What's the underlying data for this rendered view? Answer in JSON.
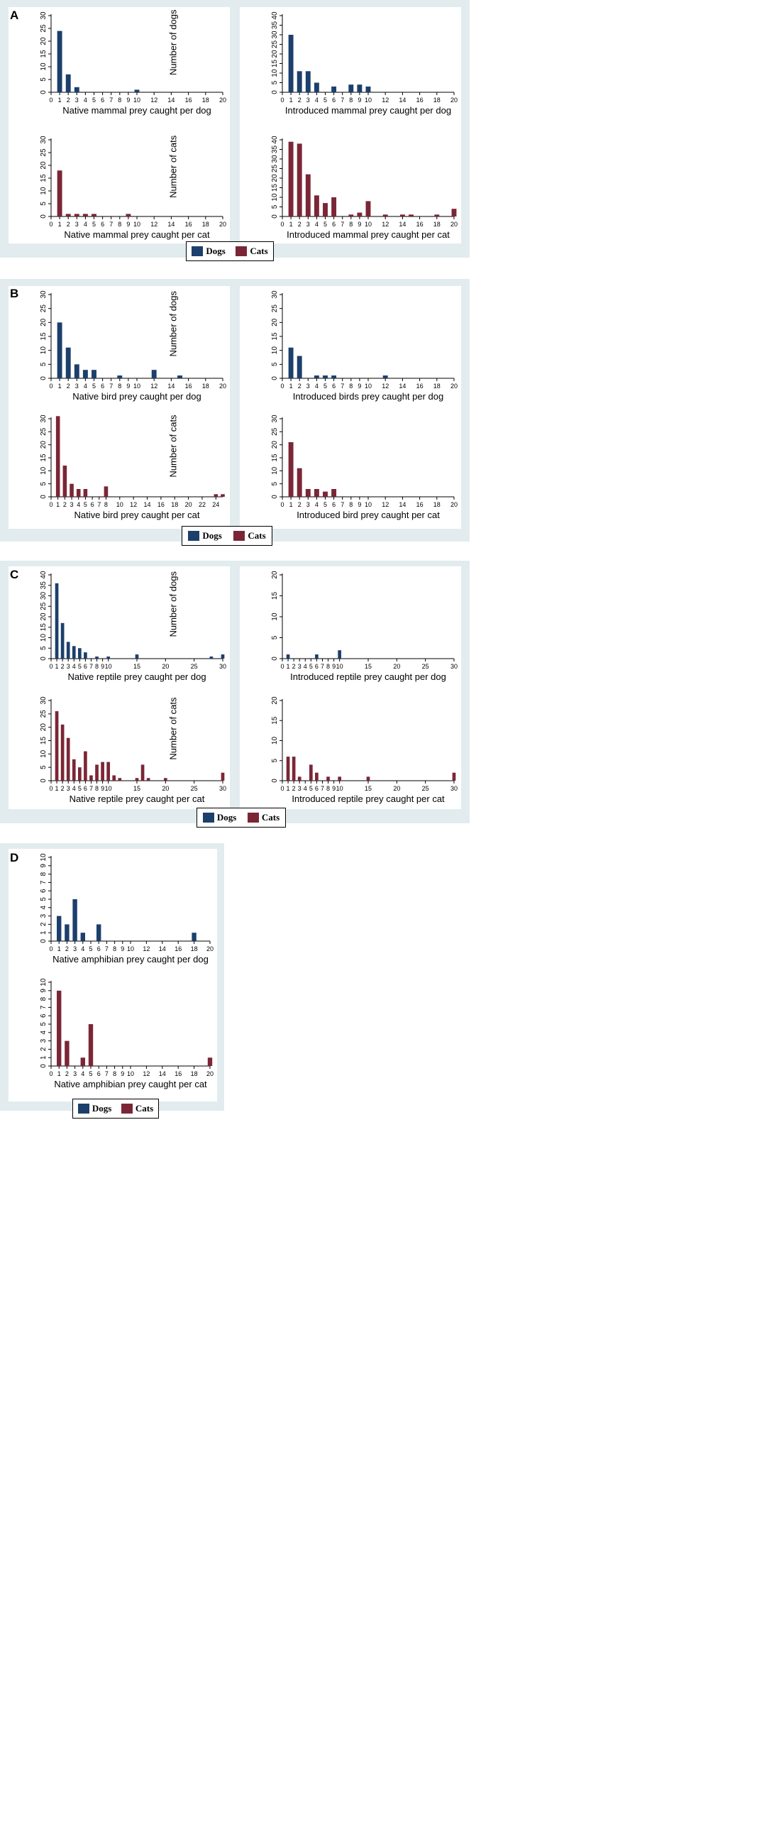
{
  "colors": {
    "dogs": "#1c3f6c",
    "cats": "#7b2636",
    "panel_bg": "#e2ecef"
  },
  "legend": {
    "dogs_label": "Dogs",
    "cats_label": "Cats"
  },
  "panels": [
    {
      "letter": "A"
    },
    {
      "letter": "B"
    },
    {
      "letter": "C"
    },
    {
      "letter": "D"
    }
  ],
  "chart_data": [
    {
      "id": "a1",
      "type": "bar",
      "panel": "A",
      "series": "dogs",
      "xlabel": "Native mammal prey caught per dog",
      "ylabel": "Number of dogs",
      "ylim": [
        0,
        30
      ],
      "yticks": [
        0,
        5,
        10,
        15,
        20,
        25,
        30
      ],
      "xlim": [
        0,
        20
      ],
      "xticks": [
        0,
        1,
        2,
        3,
        4,
        5,
        6,
        7,
        8,
        9,
        10,
        12,
        14,
        16,
        18,
        20
      ],
      "x": [
        1,
        2,
        3,
        10
      ],
      "values": [
        24,
        7,
        2,
        1
      ]
    },
    {
      "id": "a2",
      "type": "bar",
      "panel": "A",
      "series": "dogs",
      "xlabel": "Introduced mammal prey caught per dog",
      "ylabel": "",
      "ylim": [
        0,
        40
      ],
      "yticks": [
        0,
        5,
        10,
        15,
        20,
        25,
        30,
        35,
        40
      ],
      "xlim": [
        0,
        20
      ],
      "xticks": [
        0,
        1,
        2,
        3,
        4,
        5,
        6,
        7,
        8,
        9,
        10,
        12,
        14,
        16,
        18,
        20
      ],
      "x": [
        1,
        2,
        3,
        4,
        6,
        8,
        9,
        10
      ],
      "values": [
        30,
        11,
        11,
        5,
        3,
        4,
        4,
        3
      ]
    },
    {
      "id": "a3",
      "type": "bar",
      "panel": "A",
      "series": "cats",
      "xlabel": "Native mammal prey caught per cat",
      "ylabel": "Number of cats",
      "ylim": [
        0,
        30
      ],
      "yticks": [
        0,
        5,
        10,
        15,
        20,
        25,
        30
      ],
      "xlim": [
        0,
        20
      ],
      "xticks": [
        0,
        1,
        2,
        3,
        4,
        5,
        6,
        7,
        8,
        9,
        10,
        12,
        14,
        16,
        18,
        20
      ],
      "x": [
        1,
        2,
        3,
        4,
        5,
        9
      ],
      "values": [
        18,
        1,
        1,
        1,
        1,
        1
      ]
    },
    {
      "id": "a4",
      "type": "bar",
      "panel": "A",
      "series": "cats",
      "xlabel": "Introduced mammal prey caught per cat",
      "ylabel": "",
      "ylim": [
        0,
        40
      ],
      "yticks": [
        0,
        5,
        10,
        15,
        20,
        25,
        30,
        35,
        40
      ],
      "xlim": [
        0,
        20
      ],
      "xticks": [
        0,
        1,
        2,
        3,
        4,
        5,
        6,
        7,
        8,
        9,
        10,
        12,
        14,
        16,
        18,
        20
      ],
      "x": [
        1,
        2,
        3,
        4,
        5,
        6,
        8,
        9,
        10,
        12,
        14,
        15,
        18,
        20
      ],
      "values": [
        39,
        38,
        22,
        11,
        7,
        10,
        1,
        2,
        8,
        1,
        1,
        1,
        1,
        4
      ]
    },
    {
      "id": "b1",
      "type": "bar",
      "panel": "B",
      "series": "dogs",
      "xlabel": "Native bird prey caught per dog",
      "ylabel": "Number of dogs",
      "ylim": [
        0,
        30
      ],
      "yticks": [
        0,
        5,
        10,
        15,
        20,
        25,
        30
      ],
      "xlim": [
        0,
        20
      ],
      "xticks": [
        0,
        1,
        2,
        3,
        4,
        5,
        6,
        7,
        8,
        9,
        10,
        12,
        14,
        16,
        18,
        20
      ],
      "x": [
        1,
        2,
        3,
        4,
        5,
        8,
        12,
        15
      ],
      "values": [
        20,
        11,
        5,
        3,
        3,
        1,
        3,
        1
      ]
    },
    {
      "id": "b2",
      "type": "bar",
      "panel": "B",
      "series": "dogs",
      "xlabel": "Introduced birds prey caught per dog",
      "ylabel": "",
      "ylim": [
        0,
        30
      ],
      "yticks": [
        0,
        5,
        10,
        15,
        20,
        25,
        30
      ],
      "xlim": [
        0,
        20
      ],
      "xticks": [
        0,
        1,
        2,
        3,
        4,
        5,
        6,
        7,
        8,
        9,
        10,
        12,
        14,
        16,
        18,
        20
      ],
      "x": [
        1,
        2,
        4,
        5,
        6,
        12
      ],
      "values": [
        11,
        8,
        1,
        1,
        1,
        1
      ]
    },
    {
      "id": "b3",
      "type": "bar",
      "panel": "B",
      "series": "cats",
      "xlabel": "Native bird prey caught per cat",
      "ylabel": "Number of cats",
      "ylim": [
        0,
        30
      ],
      "yticks": [
        0,
        5,
        10,
        15,
        20,
        25,
        30
      ],
      "xlim": [
        0,
        25
      ],
      "xticks": [
        0,
        1,
        2,
        3,
        4,
        5,
        6,
        7,
        8,
        10,
        12,
        14,
        16,
        18,
        20,
        22,
        24
      ],
      "x": [
        1,
        2,
        3,
        4,
        5,
        8,
        24,
        25
      ],
      "values": [
        31,
        12,
        5,
        3,
        3,
        4,
        1,
        1
      ]
    },
    {
      "id": "b4",
      "type": "bar",
      "panel": "B",
      "series": "cats",
      "xlabel": "Introduced bird prey caught per cat",
      "ylabel": "",
      "ylim": [
        0,
        30
      ],
      "yticks": [
        0,
        5,
        10,
        15,
        20,
        25,
        30
      ],
      "xlim": [
        0,
        20
      ],
      "xticks": [
        0,
        1,
        2,
        3,
        4,
        5,
        6,
        7,
        8,
        9,
        10,
        12,
        14,
        16,
        18,
        20
      ],
      "x": [
        1,
        2,
        3,
        4,
        5,
        6
      ],
      "values": [
        21,
        11,
        3,
        3,
        2,
        3
      ]
    },
    {
      "id": "c1",
      "type": "bar",
      "panel": "C",
      "series": "dogs",
      "xlabel": "Native reptile prey caught per dog",
      "ylabel": "Number of dogs",
      "ylim": [
        0,
        40
      ],
      "yticks": [
        0,
        5,
        10,
        15,
        20,
        25,
        30,
        35,
        40
      ],
      "xlim": [
        0,
        30
      ],
      "xticks": [
        0,
        1,
        2,
        3,
        4,
        5,
        6,
        7,
        8,
        9,
        10,
        15,
        20,
        25,
        30
      ],
      "x": [
        1,
        2,
        3,
        4,
        5,
        6,
        8,
        10,
        15,
        28,
        30
      ],
      "values": [
        36,
        17,
        8,
        6,
        5,
        3,
        1,
        1,
        2,
        1,
        2
      ]
    },
    {
      "id": "c2",
      "type": "bar",
      "panel": "C",
      "series": "dogs",
      "xlabel": "Introduced reptile prey caught per dog",
      "ylabel": "",
      "ylim": [
        0,
        20
      ],
      "yticks": [
        0,
        5,
        10,
        15,
        20
      ],
      "xlim": [
        0,
        30
      ],
      "xticks": [
        0,
        1,
        2,
        3,
        4,
        5,
        6,
        7,
        8,
        9,
        10,
        15,
        20,
        25,
        30
      ],
      "x": [
        1,
        6,
        10
      ],
      "values": [
        1,
        1,
        2
      ]
    },
    {
      "id": "c3",
      "type": "bar",
      "panel": "C",
      "series": "cats",
      "xlabel": "Native reptile prey caught per cat",
      "ylabel": "Number of cats",
      "ylim": [
        0,
        30
      ],
      "yticks": [
        0,
        5,
        10,
        15,
        20,
        25,
        30
      ],
      "xlim": [
        0,
        30
      ],
      "xticks": [
        0,
        1,
        2,
        3,
        4,
        5,
        6,
        7,
        8,
        9,
        10,
        15,
        20,
        25,
        30
      ],
      "x": [
        1,
        2,
        3,
        4,
        5,
        6,
        7,
        8,
        9,
        10,
        11,
        12,
        15,
        16,
        17,
        20,
        30
      ],
      "values": [
        26,
        21,
        16,
        8,
        5,
        11,
        2,
        6,
        7,
        7,
        2,
        1,
        1,
        6,
        1,
        1,
        3
      ]
    },
    {
      "id": "c4",
      "type": "bar",
      "panel": "C",
      "series": "cats",
      "xlabel": "Introduced reptile prey caught per cat",
      "ylabel": "",
      "ylim": [
        0,
        20
      ],
      "yticks": [
        0,
        5,
        10,
        15,
        20
      ],
      "xlim": [
        0,
        30
      ],
      "xticks": [
        0,
        1,
        2,
        3,
        4,
        5,
        6,
        7,
        8,
        9,
        10,
        15,
        20,
        25,
        30
      ],
      "x": [
        1,
        2,
        3,
        5,
        6,
        8,
        10,
        15,
        30
      ],
      "values": [
        6,
        6,
        1,
        4,
        2,
        1,
        1,
        1,
        2
      ]
    },
    {
      "id": "d1",
      "type": "bar",
      "panel": "D",
      "series": "dogs",
      "xlabel": "Native amphibian prey caught per dog",
      "ylabel": "",
      "ylim": [
        0,
        10
      ],
      "yticks": [
        0,
        1,
        2,
        3,
        4,
        5,
        6,
        7,
        8,
        9,
        10
      ],
      "xlim": [
        0,
        20
      ],
      "xticks": [
        0,
        1,
        2,
        3,
        4,
        5,
        6,
        7,
        8,
        9,
        10,
        12,
        14,
        16,
        18,
        20
      ],
      "x": [
        1,
        2,
        3,
        4,
        6,
        18
      ],
      "values": [
        3,
        2,
        5,
        1,
        2,
        1
      ]
    },
    {
      "id": "d2",
      "type": "bar",
      "panel": "D",
      "series": "cats",
      "xlabel": "Native amphibian prey caught per cat",
      "ylabel": "",
      "ylim": [
        0,
        10
      ],
      "yticks": [
        0,
        1,
        2,
        3,
        4,
        5,
        6,
        7,
        8,
        9,
        10
      ],
      "xlim": [
        0,
        20
      ],
      "xticks": [
        0,
        1,
        2,
        3,
        4,
        5,
        6,
        7,
        8,
        9,
        10,
        12,
        14,
        16,
        18,
        20
      ],
      "x": [
        1,
        2,
        4,
        5,
        20
      ],
      "values": [
        9,
        3,
        1,
        5,
        1
      ]
    }
  ]
}
